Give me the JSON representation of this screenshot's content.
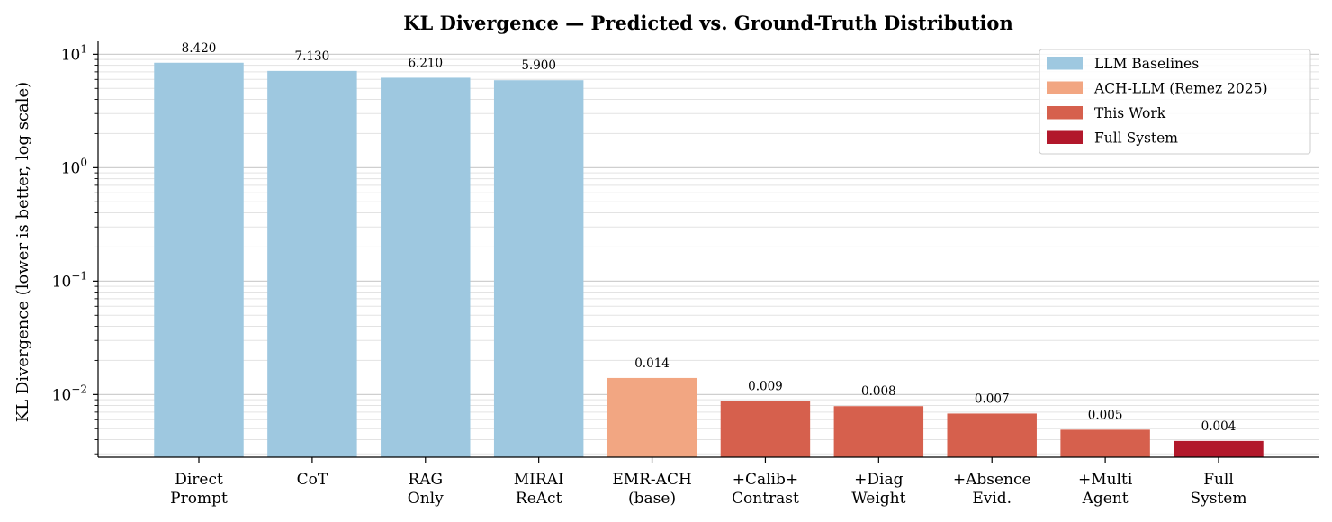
{
  "chart_data": {
    "type": "bar",
    "title": "KL Divergence — Predicted vs. Ground-Truth Distribution",
    "xlabel": "",
    "ylabel": "KL Divergence (lower is better, log scale)",
    "yscale": "log",
    "ylim": [
      0.0028,
      13
    ],
    "y_ticks": [
      {
        "value": 0.01,
        "base": "10",
        "exp": "−2"
      },
      {
        "value": 0.1,
        "base": "10",
        "exp": "−1"
      },
      {
        "value": 1,
        "base": "10",
        "exp": "0"
      },
      {
        "value": 10,
        "base": "10",
        "exp": "1"
      }
    ],
    "grid": true,
    "legend_position": "top-right",
    "categories": [
      [
        "Direct",
        "Prompt"
      ],
      [
        "CoT"
      ],
      [
        "RAG",
        "Only"
      ],
      [
        "MIRAI",
        "ReAct"
      ],
      [
        "EMR-ACH",
        "(base)"
      ],
      [
        "+Calib+",
        "Contrast"
      ],
      [
        "+Diag",
        "Weight"
      ],
      [
        "+Absence",
        "Evid."
      ],
      [
        "+Multi",
        "Agent"
      ],
      [
        "Full",
        "System"
      ]
    ],
    "values": [
      8.42,
      7.13,
      6.21,
      5.9,
      0.014,
      0.0088,
      0.0079,
      0.0068,
      0.0049,
      0.0039
    ],
    "value_labels": [
      "8.420",
      "7.130",
      "6.210",
      "5.900",
      "0.014",
      "0.009",
      "0.008",
      "0.007",
      "0.005",
      "0.004"
    ],
    "groups": [
      0,
      0,
      0,
      0,
      1,
      2,
      2,
      2,
      2,
      3
    ],
    "legend": [
      {
        "name": "LLM Baselines",
        "color": "#9ec8e0"
      },
      {
        "name": "ACH-LLM (Remez 2025)",
        "color": "#f2a682"
      },
      {
        "name": "This Work",
        "color": "#d6604d"
      },
      {
        "name": "Full System",
        "color": "#b2182b"
      }
    ]
  }
}
